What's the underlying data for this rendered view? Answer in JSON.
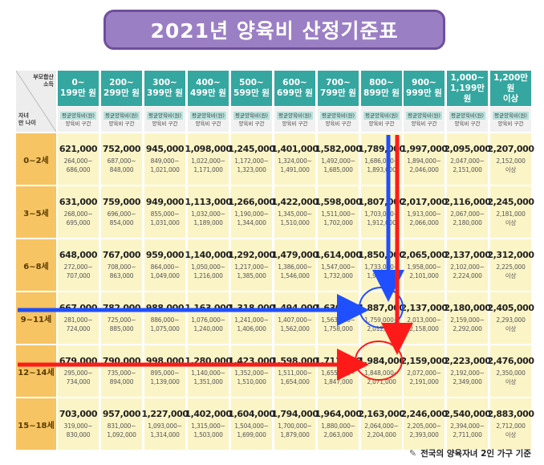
{
  "title": "2021년 양육비 산정기준표",
  "corner": {
    "top_line1": "부모합산",
    "top_line2": "소득",
    "bottom_line1": "자녀",
    "bottom_line2": "만 나이"
  },
  "income_brackets": [
    "0~\n199만 원",
    "200~\n299만 원",
    "300~\n399만 원",
    "400~\n499만 원",
    "500~\n599만 원",
    "600~\n699만 원",
    "700~\n799만 원",
    "800~\n899만 원",
    "900~\n999만 원",
    "1,000~\n1,199만 원",
    "1,200만 원\n이상"
  ],
  "sub_header": {
    "line1": "평균양육비(원)",
    "line2": "양육비 구간"
  },
  "rows": [
    {
      "age": "0~2세",
      "cells": [
        {
          "avg": "621,000",
          "low": "264,000~",
          "high": "686,000"
        },
        {
          "avg": "752,000",
          "low": "687,000~",
          "high": "848,000"
        },
        {
          "avg": "945,000",
          "low": "849,000~",
          "high": "1,021,000"
        },
        {
          "avg": "1,098,000",
          "low": "1,022,000~",
          "high": "1,171,000"
        },
        {
          "avg": "1,245,000",
          "low": "1,172,000~",
          "high": "1,323,000"
        },
        {
          "avg": "1,401,000",
          "low": "1,324,000~",
          "high": "1,491,000"
        },
        {
          "avg": "1,582,000",
          "low": "1,492,000~",
          "high": "1,685,000"
        },
        {
          "avg": "1,789,000",
          "low": "1,686,000~",
          "high": "1,893,000"
        },
        {
          "avg": "1,997,000",
          "low": "1,894,000~",
          "high": "2,046,000"
        },
        {
          "avg": "2,095,000",
          "low": "2,047,000~",
          "high": "2,151,000"
        },
        {
          "avg": "2,207,000",
          "low": "2,152,000",
          "high": "이상"
        }
      ]
    },
    {
      "age": "3~5세",
      "cells": [
        {
          "avg": "631,000",
          "low": "268,000~",
          "high": "695,000"
        },
        {
          "avg": "759,000",
          "low": "696,000~",
          "high": "854,000"
        },
        {
          "avg": "949,000",
          "low": "855,000~",
          "high": "1,031,000"
        },
        {
          "avg": "1,113,000",
          "low": "1,032,000~",
          "high": "1,189,000"
        },
        {
          "avg": "1,266,000",
          "low": "1,190,000~",
          "high": "1,344,000"
        },
        {
          "avg": "1,422,000",
          "low": "1,345,000~",
          "high": "1,510,000"
        },
        {
          "avg": "1,598,000",
          "low": "1,511,000~",
          "high": "1,702,000"
        },
        {
          "avg": "1,807,000",
          "low": "1,703,000~",
          "high": "1,912,000"
        },
        {
          "avg": "2,017,000",
          "low": "1,913,000~",
          "high": "2,066,000"
        },
        {
          "avg": "2,116,000",
          "low": "2,067,000~",
          "high": "2,180,000"
        },
        {
          "avg": "2,245,000",
          "low": "2,181,000",
          "high": "이상"
        }
      ]
    },
    {
      "age": "6~8세",
      "cells": [
        {
          "avg": "648,000",
          "low": "272,000~",
          "high": "707,000"
        },
        {
          "avg": "767,000",
          "low": "708,000~",
          "high": "863,000"
        },
        {
          "avg": "959,000",
          "low": "864,000~",
          "high": "1,049,000"
        },
        {
          "avg": "1,140,000",
          "low": "1,050,000~",
          "high": "1,216,000"
        },
        {
          "avg": "1,292,000",
          "low": "1,217,000~",
          "high": "1,385,000"
        },
        {
          "avg": "1,479,000",
          "low": "1,386,000~",
          "high": "1,546,000"
        },
        {
          "avg": "1,614,000",
          "low": "1,547,000~",
          "high": "1,732,000"
        },
        {
          "avg": "1,850,000",
          "low": "1,733,000~",
          "high": "1,957,000"
        },
        {
          "avg": "2,065,000",
          "low": "1,958,000~",
          "high": "2,101,000"
        },
        {
          "avg": "2,137,000",
          "low": "2,102,000~",
          "high": "2,224,000"
        },
        {
          "avg": "2,312,000",
          "low": "2,225,000",
          "high": "이상"
        }
      ]
    },
    {
      "age": "9~11세",
      "cells": [
        {
          "avg": "667,000",
          "low": "281,000~",
          "high": "724,000"
        },
        {
          "avg": "782,000",
          "low": "725,000~",
          "high": "885,000"
        },
        {
          "avg": "988,000",
          "low": "886,000~",
          "high": "1,075,000"
        },
        {
          "avg": "1,163,000",
          "low": "1,076,000~",
          "high": "1,240,000"
        },
        {
          "avg": "1,318,000",
          "low": "1,241,000~",
          "high": "1,406,000"
        },
        {
          "avg": "1,494,000",
          "low": "1,407,000~",
          "high": "1,562,000"
        },
        {
          "avg": "1,630,000",
          "low": "1,563,000~",
          "high": "1,758,000"
        },
        {
          "avg": "1,887,000",
          "low": "1,759,000~",
          "high": "2,012,000"
        },
        {
          "avg": "2,137,000",
          "low": "2,013,000~",
          "high": "2,158,000"
        },
        {
          "avg": "2,180,000",
          "low": "2,159,000~",
          "high": "2,292,000"
        },
        {
          "avg": "2,405,000",
          "low": "2,293,000",
          "high": "이상"
        }
      ]
    },
    {
      "age": "12~14세",
      "cells": [
        {
          "avg": "679,000",
          "low": "295,000~",
          "high": "734,000"
        },
        {
          "avg": "790,000",
          "low": "735,000~",
          "high": "894,000"
        },
        {
          "avg": "998,000",
          "low": "895,000~",
          "high": "1,139,000"
        },
        {
          "avg": "1,280,000",
          "low": "1,140,000~",
          "high": "1,351,000"
        },
        {
          "avg": "1,423,000",
          "low": "1,352,000~",
          "high": "1,510,000"
        },
        {
          "avg": "1,598,000",
          "low": "1,511,000~",
          "high": "1,654,000"
        },
        {
          "avg": "1,711,000",
          "low": "1,655,000~",
          "high": "1,847,000"
        },
        {
          "avg": "1,984,000",
          "low": "1,848,000~",
          "high": "2,071,000"
        },
        {
          "avg": "2,159,000",
          "low": "2,072,000~",
          "high": "2,191,000"
        },
        {
          "avg": "2,223,000",
          "low": "2,192,000~",
          "high": "2,349,000"
        },
        {
          "avg": "2,476,000",
          "low": "2,350,000",
          "high": "이상"
        }
      ]
    },
    {
      "age": "15~18세",
      "cells": [
        {
          "avg": "703,000",
          "low": "319,000~",
          "high": "830,000"
        },
        {
          "avg": "957,000",
          "low": "831,000~",
          "high": "1,092,000"
        },
        {
          "avg": "1,227,000",
          "low": "1,093,000~",
          "high": "1,314,000"
        },
        {
          "avg": "1,402,000",
          "low": "1,315,000~",
          "high": "1,503,000"
        },
        {
          "avg": "1,604,000",
          "low": "1,504,000~",
          "high": "1,699,000"
        },
        {
          "avg": "1,794,000",
          "low": "1,700,000~",
          "high": "1,879,000"
        },
        {
          "avg": "1,964,000",
          "low": "1,880,000~",
          "high": "2,063,000"
        },
        {
          "avg": "2,163,000",
          "low": "2,064,000~",
          "high": "2,204,000"
        },
        {
          "avg": "2,246,000",
          "low": "2,205,000~",
          "high": "2,393,000"
        },
        {
          "avg": "2,540,000",
          "low": "2,394,000~",
          "high": "2,711,000"
        },
        {
          "avg": "2,883,000",
          "low": "2,712,000",
          "high": "이상"
        }
      ]
    }
  ],
  "footnote": "전국의 양육자녀 2인 가구 기준",
  "footnote_icon": "pen-icon",
  "annotations": {
    "blue_color": "#1f4fff",
    "red_color": "#ff1a1a",
    "blue_highlight": {
      "row": "9~11세",
      "column": "800~\n899만 원",
      "value": "1,887,000"
    },
    "red_highlight": {
      "row": "12~14세",
      "column": "800~\n899만 원",
      "value": "1,984,000"
    }
  }
}
